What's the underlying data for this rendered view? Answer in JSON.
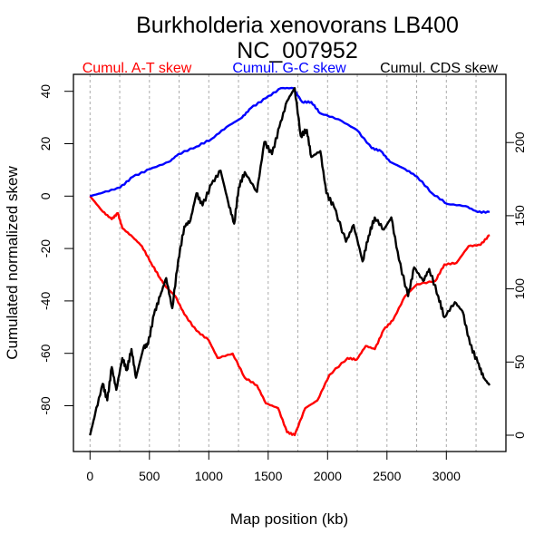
{
  "chart_data": {
    "type": "line",
    "title": "Burkholderia xenovorans LB400",
    "subtitle": "NC_007952",
    "xlabel": "Map position (kb)",
    "ylabel": "Cumulated normalized skew",
    "xlim": [
      -80,
      3560
    ],
    "ylim_left": [
      -100,
      46
    ],
    "ylim_right": [
      -7,
      220
    ],
    "x_ticks": [
      0,
      500,
      1000,
      1500,
      2000,
      2500,
      3000
    ],
    "y_left_ticks": [
      40,
      20,
      0,
      -20,
      -40,
      -60,
      -80
    ],
    "y_right_ticks": [
      0,
      50,
      100,
      150,
      200
    ],
    "grid_x": [
      0,
      250,
      500,
      750,
      1000,
      1250,
      1500,
      1750,
      2000,
      2250,
      2500,
      2750,
      3000,
      3250
    ],
    "legend_position": "top",
    "series": [
      {
        "name": "Cumul. A-T skew",
        "color": "#ff0000",
        "axis": "left",
        "points": [
          [
            0,
            0
          ],
          [
            107,
            -5.9
          ],
          [
            183,
            -8.8
          ],
          [
            234,
            -6.5
          ],
          [
            272,
            -12.2
          ],
          [
            361,
            -15.7
          ],
          [
            437,
            -19.1
          ],
          [
            514,
            -25.5
          ],
          [
            590,
            -31.3
          ],
          [
            641,
            -34.7
          ],
          [
            718,
            -38.2
          ],
          [
            794,
            -45.1
          ],
          [
            896,
            -51.4
          ],
          [
            998,
            -54.9
          ],
          [
            1074,
            -61.8
          ],
          [
            1201,
            -60.1
          ],
          [
            1303,
            -69.3
          ],
          [
            1405,
            -72.2
          ],
          [
            1481,
            -79.1
          ],
          [
            1583,
            -80.9
          ],
          [
            1659,
            -90.1
          ],
          [
            1723,
            -91.2
          ],
          [
            1812,
            -80.9
          ],
          [
            1914,
            -78
          ],
          [
            2016,
            -68.2
          ],
          [
            2168,
            -61.8
          ],
          [
            2245,
            -62.4
          ],
          [
            2321,
            -57.2
          ],
          [
            2398,
            -58.4
          ],
          [
            2474,
            -50.9
          ],
          [
            2550,
            -47.4
          ],
          [
            2652,
            -38.2
          ],
          [
            2754,
            -33.6
          ],
          [
            2907,
            -32.4
          ],
          [
            2983,
            -26.1
          ],
          [
            3085,
            -25.5
          ],
          [
            3187,
            -19.1
          ],
          [
            3288,
            -18.6
          ],
          [
            3364,
            -14.8
          ]
        ]
      },
      {
        "name": "Cumul. G-C skew",
        "color": "#0000ff",
        "axis": "left",
        "points": [
          [
            0,
            0
          ],
          [
            107,
            1.3
          ],
          [
            254,
            3.3
          ],
          [
            361,
            7.4
          ],
          [
            504,
            10.3
          ],
          [
            667,
            13.1
          ],
          [
            743,
            16
          ],
          [
            896,
            18.9
          ],
          [
            1023,
            21.8
          ],
          [
            1150,
            26.4
          ],
          [
            1278,
            29.9
          ],
          [
            1354,
            33.6
          ],
          [
            1481,
            37.4
          ],
          [
            1608,
            41.2
          ],
          [
            1710,
            41.2
          ],
          [
            1786,
            35.9
          ],
          [
            1863,
            35.9
          ],
          [
            1939,
            31.6
          ],
          [
            2092,
            29.3
          ],
          [
            2245,
            25.3
          ],
          [
            2372,
            18.3
          ],
          [
            2449,
            17.2
          ],
          [
            2525,
            13.1
          ],
          [
            2653,
            10.3
          ],
          [
            2754,
            7.4
          ],
          [
            2882,
            1
          ],
          [
            3009,
            -3
          ],
          [
            3162,
            -3.8
          ],
          [
            3264,
            -6.1
          ],
          [
            3364,
            -6.1
          ]
        ]
      },
      {
        "name": "Cumul. CDS skew",
        "color": "#000000",
        "axis": "right",
        "points": [
          [
            0,
            0
          ],
          [
            43,
            14.5
          ],
          [
            107,
            35.1
          ],
          [
            145,
            23.8
          ],
          [
            183,
            46.5
          ],
          [
            221,
            31
          ],
          [
            272,
            52.7
          ],
          [
            310,
            44.4
          ],
          [
            349,
            58.9
          ],
          [
            387,
            39.3
          ],
          [
            450,
            59.9
          ],
          [
            488,
            62
          ],
          [
            539,
            82.6
          ],
          [
            590,
            95
          ],
          [
            641,
            107.4
          ],
          [
            692,
            86.8
          ],
          [
            743,
            119.8
          ],
          [
            794,
            142.6
          ],
          [
            845,
            146.7
          ],
          [
            896,
            165.3
          ],
          [
            947,
            157
          ],
          [
            1023,
            171.5
          ],
          [
            1099,
            180.8
          ],
          [
            1163,
            159.1
          ],
          [
            1214,
            144.6
          ],
          [
            1252,
            169.4
          ],
          [
            1303,
            179.8
          ],
          [
            1405,
            166.3
          ],
          [
            1468,
            200.4
          ],
          [
            1532,
            192.1
          ],
          [
            1595,
            210.7
          ],
          [
            1659,
            228.3
          ],
          [
            1723,
            237.2
          ],
          [
            1774,
            204.5
          ],
          [
            1825,
            208.7
          ],
          [
            1863,
            190.1
          ],
          [
            1939,
            194.2
          ],
          [
            1990,
            165.3
          ],
          [
            2054,
            156
          ],
          [
            2155,
            132.2
          ],
          [
            2219,
            143.6
          ],
          [
            2295,
            118.8
          ],
          [
            2346,
            136.4
          ],
          [
            2397,
            148.8
          ],
          [
            2474,
            140.5
          ],
          [
            2537,
            148.8
          ],
          [
            2601,
            119.8
          ],
          [
            2678,
            95
          ],
          [
            2729,
            114.7
          ],
          [
            2805,
            105.4
          ],
          [
            2856,
            113.6
          ],
          [
            2932,
            95
          ],
          [
            2983,
            80.6
          ],
          [
            3072,
            90.9
          ],
          [
            3136,
            84.7
          ],
          [
            3200,
            62
          ],
          [
            3264,
            49.6
          ],
          [
            3314,
            39.3
          ],
          [
            3364,
            34.1
          ]
        ]
      }
    ]
  }
}
